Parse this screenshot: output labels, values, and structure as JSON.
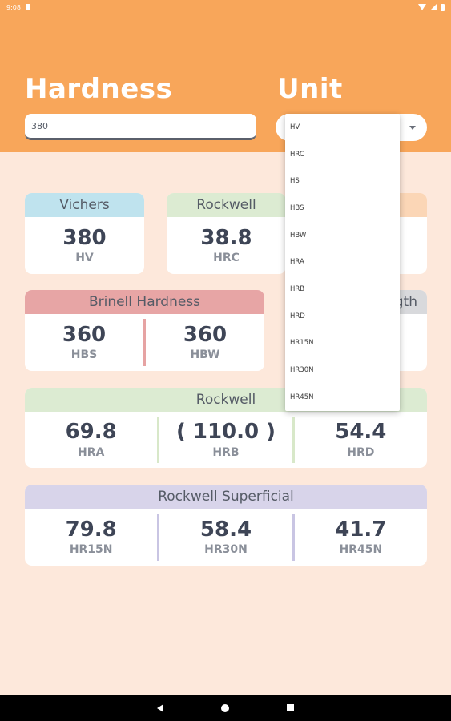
{
  "status": {
    "time": "9:08"
  },
  "header": {
    "title_hardness": "Hardness",
    "title_unit": "Unit"
  },
  "inputs": {
    "hardness_value": "380"
  },
  "dropdown": {
    "options": [
      "HV",
      "HRC",
      "HS",
      "HBS",
      "HBW",
      "HRA",
      "HRB",
      "HRD",
      "HR15N",
      "HR30N",
      "HR45N"
    ]
  },
  "cards": {
    "vichers": {
      "title": "Vichers",
      "value": "380",
      "unit": "HV"
    },
    "rockwell_c": {
      "title": "Rockwell",
      "value": "38.8",
      "unit": "HRC"
    },
    "brinell": {
      "title": "Brinell Hardness",
      "cells": [
        {
          "value": "360",
          "unit": "HBS"
        },
        {
          "value": "360",
          "unit": "HBW"
        }
      ]
    },
    "tensile": {
      "title_partial": "gth"
    },
    "rockwell": {
      "title": "Rockwell",
      "cells": [
        {
          "value": "69.8",
          "unit": "HRA"
        },
        {
          "value": "( 110.0 )",
          "unit": "HRB"
        },
        {
          "value": "54.4",
          "unit": "HRD"
        }
      ]
    },
    "superficial": {
      "title": "Rockwell Superficial",
      "cells": [
        {
          "value": "79.8",
          "unit": "HR15N"
        },
        {
          "value": "58.4",
          "unit": "HR30N"
        },
        {
          "value": "41.7",
          "unit": "HR45N"
        }
      ]
    }
  },
  "colors": {
    "header": "#f8a65a",
    "background": "#fde8db",
    "vichers": "#bfe3ee",
    "rockwell": "#dcebd2",
    "brinell": "#e7a5a5",
    "superficial": "#d8d4ea"
  }
}
